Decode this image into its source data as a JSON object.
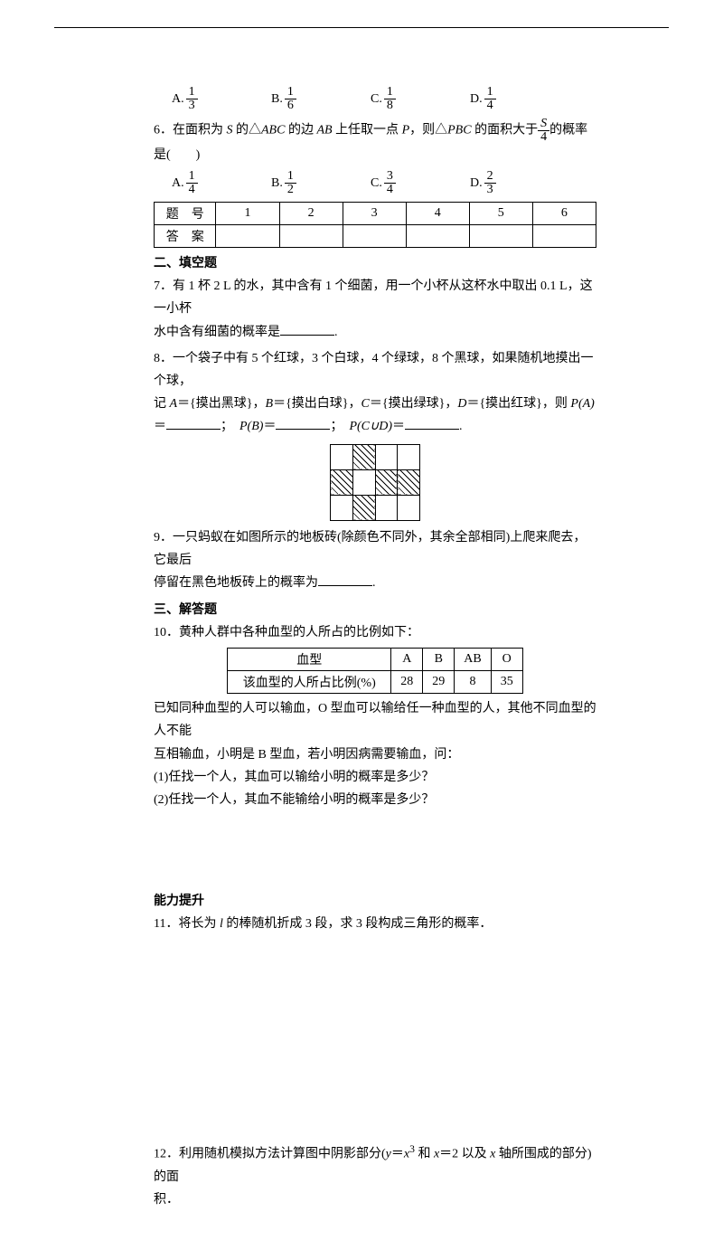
{
  "q5_options": [
    {
      "letter": "A.",
      "num": "1",
      "den": "3"
    },
    {
      "letter": "B.",
      "num": "1",
      "den": "6"
    },
    {
      "letter": "C.",
      "num": "1",
      "den": "8"
    },
    {
      "letter": "D.",
      "num": "1",
      "den": "4"
    }
  ],
  "q6": {
    "prefix": "6．在面积为 ",
    "s": "S",
    "mid1": " 的△",
    "abc": "ABC",
    "mid2": " 的边 ",
    "ab": "AB",
    "mid3": " 上任取一点 ",
    "p": "P",
    "mid4": "，则△",
    "pbc": "PBC",
    "mid5": " 的面积大于",
    "frac_num": "S",
    "frac_den": "4",
    "suffix": "的概率是(　　)"
  },
  "q6_options": [
    {
      "letter": "A.",
      "num": "1",
      "den": "4"
    },
    {
      "letter": "B.",
      "num": "1",
      "den": "2"
    },
    {
      "letter": "C.",
      "num": "3",
      "den": "4"
    },
    {
      "letter": "D.",
      "num": "2",
      "den": "3"
    }
  ],
  "answer_table": {
    "row1": [
      "题　号",
      "1",
      "2",
      "3",
      "4",
      "5",
      "6"
    ],
    "row2": [
      "答　案",
      "",
      "",
      "",
      "",
      "",
      ""
    ]
  },
  "sec2": "二、填空题",
  "q7": {
    "line1": "7．有 1 杯 2 L 的水，其中含有 1 个细菌，用一个小杯从这杯水中取出 0.1 L，这一小杯",
    "line2_pre": "水中含有细菌的概率是",
    "line2_post": "."
  },
  "q8": {
    "line1": "8．一个袋子中有 5 个红球，3 个白球，4 个绿球，8 个黑球，如果随机地摸出一个球，",
    "line2_pre": "记 ",
    "A": "A",
    "Adesc": "＝{摸出黑球}，",
    "B": "B",
    "Bdesc": "＝{摸出白球}，",
    "C": "C",
    "Cdesc": "＝{摸出绿球}，",
    "D": "D",
    "Ddesc": "＝{摸出红球}，则 ",
    "PA": "P(A)",
    "line3_eq": "＝",
    "sep1": "；　",
    "PB": "P(B)",
    "sep2": "＝",
    "sep3": "；　",
    "PCD": "P(C∪D)",
    "sep4": "＝",
    "end": "."
  },
  "grid_pattern": [
    [
      0,
      1,
      0,
      0
    ],
    [
      1,
      0,
      1,
      1
    ],
    [
      0,
      1,
      0,
      0
    ]
  ],
  "q9": {
    "line1": "9．一只蚂蚁在如图所示的地板砖(除颜色不同外，其余全部相同)上爬来爬去，它最后",
    "line2_pre": "停留在黑色地板砖上的概率为",
    "line2_post": "."
  },
  "sec3": "三、解答题",
  "q10": {
    "intro": "10．黄种人群中各种血型的人所占的比例如下：",
    "header": [
      "血型",
      "A",
      "B",
      "AB",
      "O"
    ],
    "row": [
      "该血型的人所占比例(%)",
      "28",
      "29",
      "8",
      "35"
    ],
    "p1": "已知同种血型的人可以输血，O 型血可以输给任一种血型的人，其他不同血型的人不能",
    "p2": "互相输血，小明是 B 型血，若小明因病需要输血，问：",
    "q1": "(1)任找一个人，其血可以输给小明的概率是多少？",
    "q2": "(2)任找一个人，其血不能输给小明的概率是多少？"
  },
  "advance": "能力提升",
  "q11": {
    "text_pre": "11．将长为 ",
    "l": "l",
    "text_post": " 的棒随机折成 3 段，求 3 段构成三角形的概率．"
  },
  "q12": {
    "pre": "12．利用随机模拟方法计算图中阴影部分(",
    "y": "y",
    "eq": "＝",
    "x": "x",
    "cube": "3",
    "and": " 和 ",
    "x2": "x",
    "eq2": "＝2 以及 ",
    "xaxis": "x",
    "post": " 轴所围成的部分)的面",
    "line2": "积．"
  }
}
